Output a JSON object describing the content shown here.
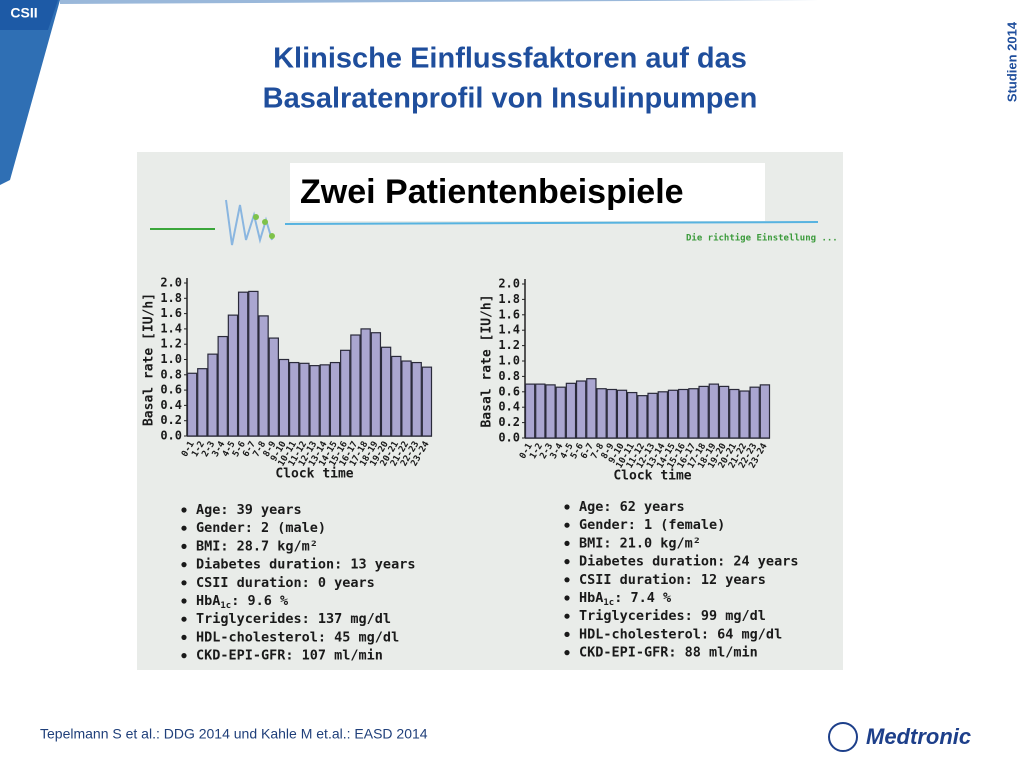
{
  "slide": {
    "tab": "CSII",
    "title": [
      "Klinische Einflussfaktoren auf das",
      "Basalratenprofil von Insulinpumpen"
    ],
    "side_label": "Studien 2014",
    "photo_heading": "Zwei Patientenbeispiele",
    "photo_tagline": "Die richtige Einstellung ...",
    "citation": "Tepelmann S et al.: DDG  2014 und Kahle M et.al.: EASD 2014",
    "logo": "Medtronic"
  },
  "chart_data": [
    {
      "type": "bar",
      "y_label": "Basal rate [IU/h]",
      "x_label": "Clock time",
      "color": "#aaa6d0",
      "categories": [
        "0-1",
        "1-2",
        "2-3",
        "3-4",
        "4-5",
        "5-6",
        "6-7",
        "7-8",
        "8-9",
        "9-10",
        "10-11",
        "11-12",
        "12-13",
        "13-14",
        "14-15",
        "15-16",
        "16-17",
        "17-18",
        "18-19",
        "19-20",
        "20-21",
        "21-22",
        "22-23",
        "23-24"
      ],
      "values": [
        0.82,
        0.88,
        1.07,
        1.3,
        1.58,
        1.88,
        1.89,
        1.57,
        1.28,
        1.0,
        0.96,
        0.95,
        0.92,
        0.93,
        0.96,
        1.12,
        1.32,
        1.4,
        1.35,
        1.16,
        1.04,
        0.98,
        0.96,
        0.9
      ],
      "ylim": [
        0,
        2
      ],
      "yticks": [
        {
          "value": 0,
          "label": "0.0"
        },
        0.2,
        0.4,
        0.6,
        0.8,
        {
          "value": 1,
          "label": "1.0"
        },
        1.2,
        1.4,
        1.6,
        1.8,
        {
          "value": 2,
          "label": "2.0"
        }
      ]
    },
    {
      "type": "bar",
      "y_label": "Basal rate [IU/h]",
      "x_label": "Clock time",
      "color": "#aaa6d0",
      "categories": [
        "0-1",
        "1-2",
        "2-3",
        "3-4",
        "4-5",
        "5-6",
        "6-7",
        "7-8",
        "8-9",
        "9-10",
        "10-11",
        "11-12",
        "12-13",
        "13-14",
        "14-15",
        "15-16",
        "16-17",
        "17-18",
        "18-19",
        "19-20",
        "20-21",
        "21-22",
        "22-23",
        "23-24"
      ],
      "values": [
        0.7,
        0.7,
        0.69,
        0.66,
        0.71,
        0.74,
        0.77,
        0.64,
        0.63,
        0.62,
        0.59,
        0.55,
        0.58,
        0.6,
        0.62,
        0.63,
        0.64,
        0.67,
        0.7,
        0.67,
        0.63,
        0.61,
        0.66,
        0.69
      ],
      "ylim": [
        0,
        2
      ],
      "yticks": [
        {
          "value": 0,
          "label": "0.0"
        },
        0.2,
        0.4,
        0.6,
        0.8,
        {
          "value": 1,
          "label": "1.0"
        },
        1.2,
        1.4,
        1.6,
        1.8,
        {
          "value": 2,
          "label": "2.0"
        }
      ]
    }
  ],
  "patients": [
    [
      "Age: 39 years",
      "Gender: 2 (male)",
      "BMI: 28.7 kg/m²",
      "Diabetes duration: 13 years",
      "CSII duration: 0 years",
      {
        "prefix": "HbA",
        "sub": "1c",
        "suffix": ": 9.6 %"
      },
      "Triglycerides: 137 mg/dl",
      "HDL-cholesterol: 45 mg/dl",
      "CKD-EPI-GFR: 107 ml/min"
    ],
    [
      "Age: 62 years",
      "Gender: 1 (female)",
      "BMI: 21.0 kg/m²",
      "Diabetes duration: 24 years",
      "CSII duration: 12 years",
      {
        "prefix": "HbA",
        "sub": "1c",
        "suffix": ": 7.4 %"
      },
      "Triglycerides: 99 mg/dl",
      "HDL-cholesterol: 64 mg/dl",
      "CKD-EPI-GFR: 88 ml/min"
    ]
  ]
}
